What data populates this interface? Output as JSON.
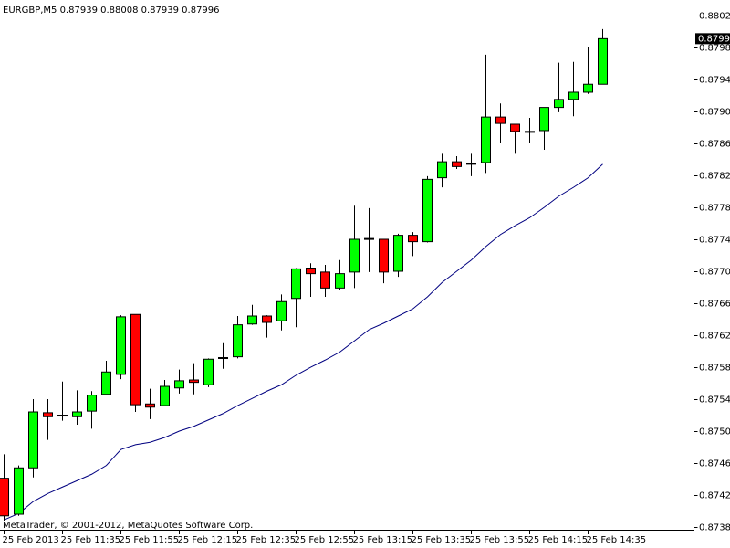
{
  "chart_data": {
    "type": "candlestick",
    "title": "EURGBP,M5  0.87939 0.88008 0.87939 0.87996",
    "footer": "MetaTrader, © 2001-2012, MetaQuotes Software Corp.",
    "categories": [
      "25 Feb 2013",
      null,
      null,
      null,
      "25 Feb 11:35",
      null,
      null,
      null,
      "25 Feb 11:55",
      null,
      null,
      null,
      "25 Feb 12:15",
      null,
      null,
      null,
      "25 Feb 12:35",
      null,
      null,
      null,
      "25 Feb 12:55",
      null,
      null,
      null,
      "25 Feb 13:15",
      null,
      null,
      null,
      "25 Feb 13:35",
      null,
      null,
      null,
      "25 Feb 13:55",
      null,
      null,
      null,
      "25 Feb 14:15",
      null,
      null,
      null,
      "25 Feb 14:35",
      null
    ],
    "open": [
      0.87446,
      0.87401,
      0.87459,
      0.87528,
      0.87525,
      0.87523,
      0.8753,
      0.87551,
      0.87576,
      0.87651,
      0.87539,
      0.87537,
      0.87559,
      0.87569,
      0.87563,
      0.87596,
      0.87598,
      0.87639,
      0.87649,
      0.87643,
      0.87671,
      0.87709,
      0.87704,
      0.87684,
      0.87704,
      0.87745,
      0.87745,
      0.87705,
      0.8775,
      0.87742,
      0.87822,
      0.87842,
      0.8784,
      0.87841,
      0.87898,
      0.87889,
      0.8788,
      0.87881,
      0.8791,
      0.8792,
      0.87929,
      0.87939
    ],
    "high": [
      0.87476,
      0.87462,
      0.87545,
      0.87545,
      0.87567,
      0.87556,
      0.87555,
      0.87593,
      0.8765,
      0.87651,
      0.87558,
      0.87569,
      0.87582,
      0.8759,
      0.87596,
      0.87615,
      0.87649,
      0.87663,
      0.8765,
      0.87676,
      0.87709,
      0.87715,
      0.87713,
      0.87719,
      0.87787,
      0.87784,
      0.87745,
      0.87752,
      0.87754,
      0.87824,
      0.87852,
      0.87849,
      0.87852,
      0.87976,
      0.87915,
      0.87889,
      0.87897,
      0.8791,
      0.87966,
      0.87967,
      0.87985,
      0.88008
    ],
    "low": [
      0.87393,
      0.87399,
      0.87447,
      0.87494,
      0.87518,
      0.87513,
      0.87508,
      0.8755,
      0.8757,
      0.87529,
      0.8752,
      0.87536,
      0.87552,
      0.87551,
      0.8756,
      0.87583,
      0.87596,
      0.87638,
      0.87622,
      0.87631,
      0.87635,
      0.87673,
      0.87673,
      0.87681,
      0.87684,
      0.87704,
      0.8769,
      0.87698,
      0.87724,
      0.87741,
      0.8781,
      0.87833,
      0.87824,
      0.87828,
      0.87865,
      0.87852,
      0.87865,
      0.87857,
      0.87904,
      0.87899,
      0.87927,
      0.87939
    ],
    "close": [
      0.87399,
      0.87459,
      0.87529,
      0.87523,
      0.87524,
      0.87529,
      0.8755,
      0.87579,
      0.87648,
      0.87538,
      0.87535,
      0.87561,
      0.87568,
      0.87566,
      0.87595,
      0.87597,
      0.87638,
      0.87649,
      0.87641,
      0.87667,
      0.87708,
      0.87702,
      0.87684,
      0.87702,
      0.87745,
      0.87746,
      0.87704,
      0.8775,
      0.87742,
      0.8782,
      0.87842,
      0.87836,
      0.8784,
      0.87898,
      0.8789,
      0.8788,
      0.8788,
      0.8791,
      0.8792,
      0.87929,
      0.87939,
      0.87996
    ],
    "up_color": "#00ff00",
    "down_color": "#ff0000",
    "ma_values": [
      0.87394,
      0.87402,
      0.87417,
      0.87427,
      0.87435,
      0.87443,
      0.87451,
      0.87462,
      0.87482,
      0.87488,
      0.87491,
      0.87497,
      0.87505,
      0.87511,
      0.87519,
      0.87527,
      0.87537,
      0.87546,
      0.87555,
      0.87563,
      0.87575,
      0.87585,
      0.87594,
      0.87604,
      0.87618,
      0.87632,
      0.8764,
      0.87649,
      0.87658,
      0.87673,
      0.87691,
      0.87705,
      0.87719,
      0.87736,
      0.87751,
      0.87762,
      0.87772,
      0.87785,
      0.87799,
      0.8781,
      0.87822,
      0.87839
    ],
    "ma_color": "#000080",
    "ylim": [
      0.873816,
      0.880444
    ],
    "yticks": [
      0.88025,
      0.87985,
      0.87945,
      0.87905,
      0.87865,
      0.87825,
      0.87785,
      0.87745,
      0.87705,
      0.87665,
      0.87625,
      0.87585,
      0.87545,
      0.87505,
      0.87465,
      0.87425,
      0.87385
    ]
  }
}
